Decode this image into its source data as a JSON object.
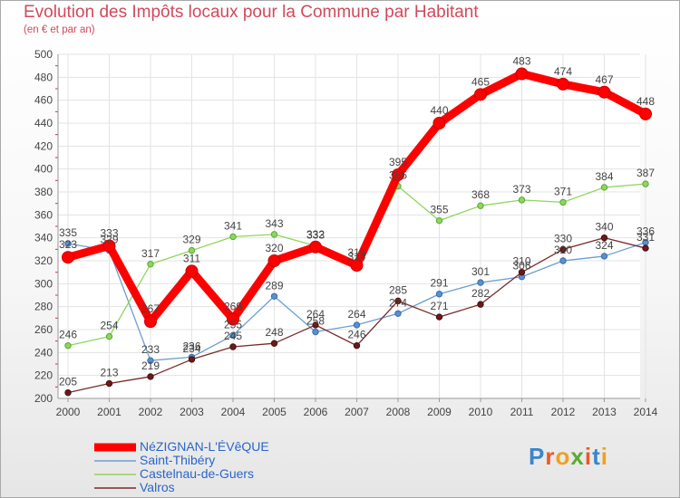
{
  "page": {
    "title": "Evolution des Impôts locaux pour la Commune par Habitant",
    "subtitle": "(en € et par an)"
  },
  "logo": {
    "text": "Proxiti",
    "letters": [
      "P",
      "r",
      "o",
      "x",
      "i",
      "t",
      "i"
    ],
    "colors": [
      "#3a86c8",
      "#e85a2a",
      "#f0a020",
      "#5aaa30",
      "#e85a2a",
      "#3a86c8",
      "#f0a020"
    ]
  },
  "chart_data": {
    "type": "line",
    "title": "Evolution des Impôts locaux pour la Commune par Habitant",
    "subtitle": "(en € et par an)",
    "xlabel": "",
    "ylabel": "",
    "ylim": [
      200,
      500
    ],
    "yticks": [
      200,
      220,
      240,
      260,
      280,
      300,
      320,
      340,
      360,
      380,
      400,
      420,
      440,
      460,
      480,
      500
    ],
    "grid": true,
    "legend_position": "bottom-left",
    "categories": [
      "2000",
      "2001",
      "2002",
      "2003",
      "2004",
      "2005",
      "2006",
      "2007",
      "2008",
      "2009",
      "2010",
      "2011",
      "2012",
      "2013",
      "2014"
    ],
    "series": [
      {
        "name": "NéZIGNAN-L'ÉVêQUE",
        "color": "#ff0000",
        "values": [
          323,
          333,
          267,
          311,
          269,
          320,
          332,
          316,
          395,
          440,
          465,
          483,
          474,
          467,
          448
        ]
      },
      {
        "name": "Saint-Thibéry",
        "color": "#6b9fd0",
        "values": [
          335,
          329,
          233,
          236,
          255,
          289,
          258,
          264,
          274,
          291,
          301,
          306,
          320,
          324,
          336
        ]
      },
      {
        "name": "Castelnau-de-Guers",
        "color": "#8fd65c",
        "values": [
          246,
          254,
          317,
          329,
          341,
          343,
          333,
          314,
          385,
          355,
          368,
          373,
          371,
          384,
          387
        ]
      },
      {
        "name": "Valros",
        "color": "#7a2a2a",
        "values": [
          205,
          213,
          219,
          234,
          245,
          248,
          264,
          246,
          285,
          271,
          282,
          310,
          330,
          340,
          331
        ]
      }
    ]
  }
}
